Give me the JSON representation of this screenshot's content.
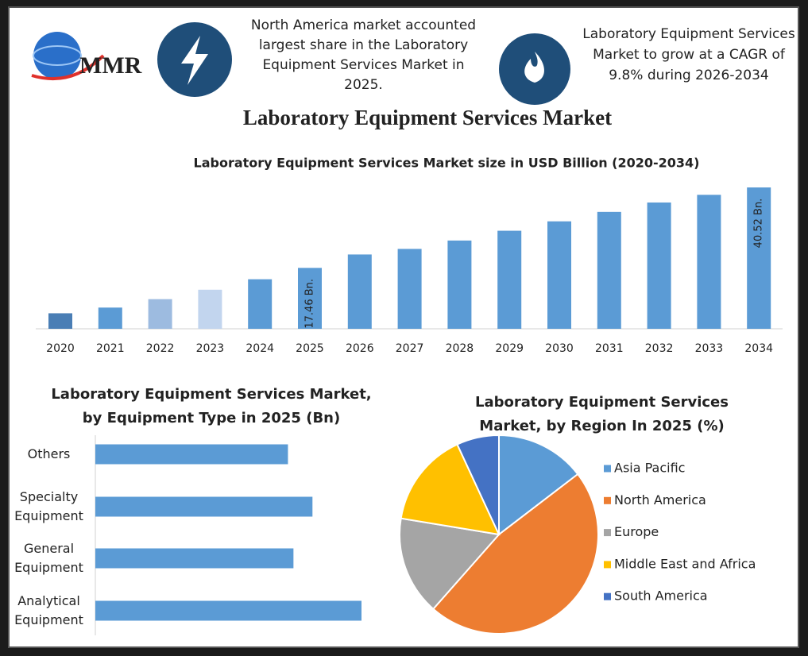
{
  "header": {
    "logo": "MMR",
    "note_left": "North America market accounted largest share in the Laboratory Equipment Services Market in 2025.",
    "note_right": "Laboratory Equipment Services Market to grow at a CAGR of 9.8% during 2026-2034",
    "title": "Laboratory Equipment Services Market"
  },
  "chart_data": [
    {
      "type": "bar",
      "title": "Laboratory Equipment Services Market size in USD Billion (2020-2034)",
      "categories": [
        "2020",
        "2021",
        "2022",
        "2023",
        "2024",
        "2025",
        "2026",
        "2027",
        "2028",
        "2029",
        "2030",
        "2031",
        "2032",
        "2033",
        "2034"
      ],
      "values": [
        4.45,
        6.08,
        8.5,
        11.2,
        14.2,
        17.46,
        21.3,
        22.9,
        25.3,
        28.1,
        30.8,
        33.5,
        36.2,
        38.4,
        40.52
      ],
      "value_labels": [
        null,
        null,
        null,
        null,
        null,
        "17.46 Bn.",
        null,
        null,
        null,
        null,
        null,
        null,
        null,
        null,
        "40.52 Bn."
      ],
      "colors": [
        "#4a7eb5",
        "#5b9bd5",
        "#9dbbe0",
        "#c2d5ee",
        "#5b9bd5",
        "#5b9bd5",
        "#5b9bd5",
        "#5b9bd5",
        "#5b9bd5",
        "#5b9bd5",
        "#5b9bd5",
        "#5b9bd5",
        "#5b9bd5",
        "#5b9bd5",
        "#5b9bd5"
      ]
    },
    {
      "type": "hbar",
      "title": "Laboratory Equipment Services Market, by Equipment Type in 2025 (Bn)",
      "categories": [
        "Others",
        "Specialty Equipment",
        "General Equipment",
        "Analytical Equipment"
      ],
      "values": [
        3.85,
        4.34,
        3.96,
        5.32
      ],
      "color": "#5b9bd5"
    },
    {
      "type": "pie",
      "title": "Laboratory Equipment Services Market, by Region In 2025 (%)",
      "categories": [
        "Asia Pacific",
        "North America",
        "Europe",
        "Middle East and Africa",
        "South America"
      ],
      "values": [
        14.6,
        46.9,
        16.1,
        15.5,
        6.9
      ],
      "colors": [
        "#5b9bd5",
        "#ed7d31",
        "#a5a5a5",
        "#ffc000",
        "#4472c4"
      ]
    }
  ]
}
